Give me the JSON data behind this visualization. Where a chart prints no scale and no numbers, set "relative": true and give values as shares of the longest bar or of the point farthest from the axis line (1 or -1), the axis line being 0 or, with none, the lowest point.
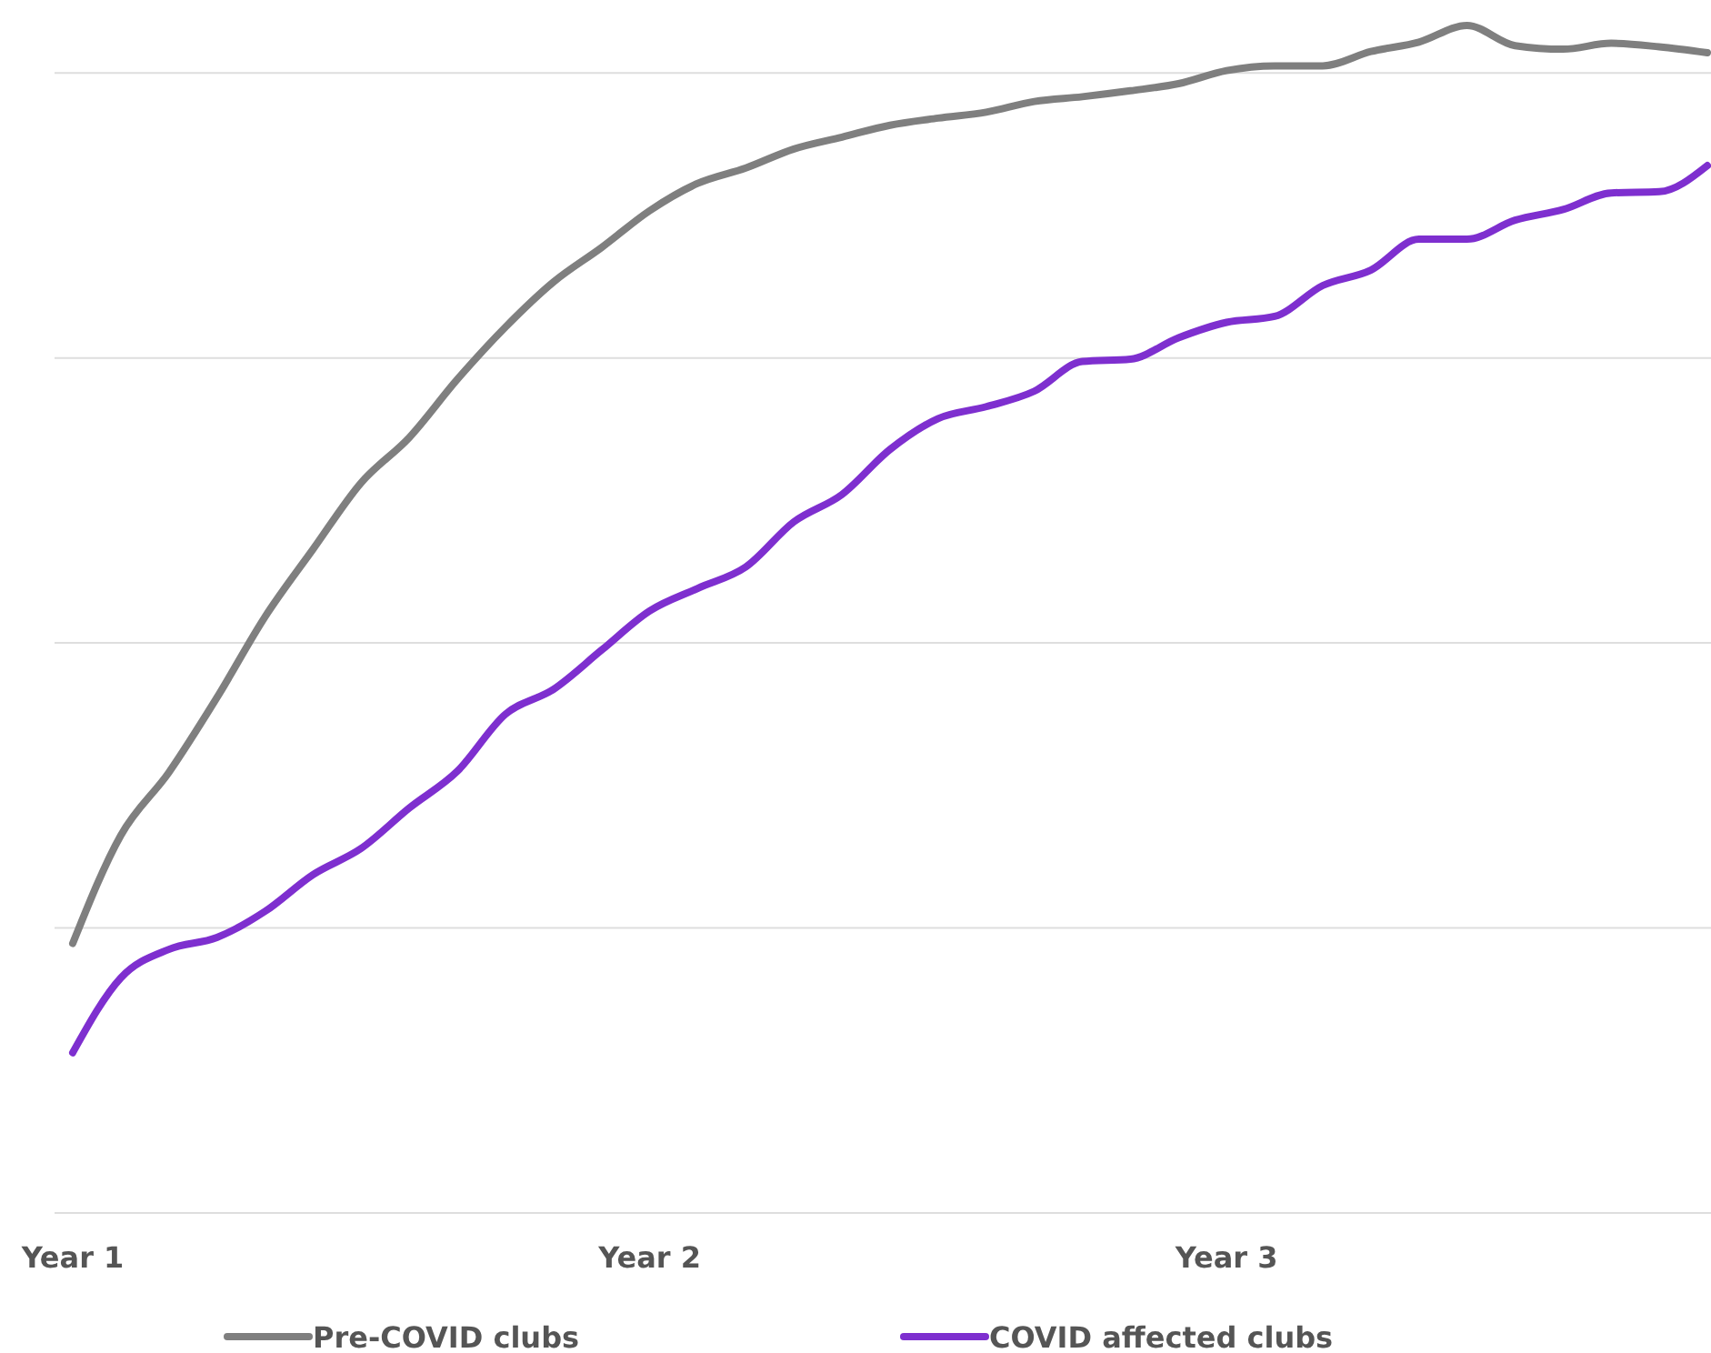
{
  "chart_data": {
    "type": "line",
    "relative": true,
    "grid": true,
    "legend": "bottom",
    "line_style": "solid",
    "marker": "none",
    "categories": [
      "Year 1",
      null,
      null,
      null,
      null,
      null,
      null,
      null,
      null,
      null,
      null,
      null,
      "Year 2",
      null,
      null,
      null,
      null,
      null,
      null,
      null,
      null,
      null,
      null,
      null,
      "Year 3",
      null,
      null,
      null,
      null,
      null,
      null,
      null,
      null,
      null,
      null
    ],
    "series": [
      {
        "name": "Pre-COVID clubs",
        "color": "#7f7f7f",
        "values": [
          0.227,
          0.318,
          0.371,
          0.434,
          0.502,
          0.559,
          0.615,
          0.653,
          0.702,
          0.746,
          0.784,
          0.813,
          0.844,
          0.867,
          0.88,
          0.896,
          0.906,
          0.916,
          0.922,
          0.927,
          0.936,
          0.94,
          0.945,
          0.951,
          0.962,
          0.966,
          0.966,
          0.978,
          0.986,
          1,
          0.983,
          0.98,
          0.985,
          0.982,
          0.977
        ]
      },
      {
        "name": "COVID affected clubs",
        "color": "#7e2fcf",
        "values": [
          0.135,
          0.198,
          0.222,
          0.232,
          0.254,
          0.285,
          0.307,
          0.341,
          0.372,
          0.42,
          0.441,
          0.474,
          0.507,
          0.526,
          0.544,
          0.582,
          0.605,
          0.643,
          0.669,
          0.679,
          0.692,
          0.717,
          0.719,
          0.737,
          0.75,
          0.755,
          0.781,
          0.794,
          0.82,
          0.82,
          0.836,
          0.845,
          0.859,
          0.86,
          0.882
        ]
      }
    ]
  }
}
